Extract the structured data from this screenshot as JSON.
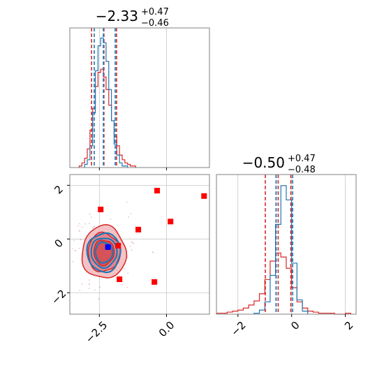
{
  "chart_data": {
    "type": "corner",
    "colors": {
      "series_a": "#1f77b4",
      "series_b": "#d62728",
      "markers": "#ff0000",
      "truth_marker": "#0000ff",
      "grid": "#c8c8c8",
      "frame": "#808080"
    },
    "parameters": [
      {
        "title": {
          "main": "−2.33",
          "sup": "+0.47",
          "sub": "−0.46"
        },
        "xlim": [
          -3.6,
          1.6
        ],
        "xticks": [
          -2.5,
          0.0
        ],
        "xtick_labels": [
          "−2.5",
          "0.0"
        ],
        "median_b": -2.33,
        "quantiles_b": [
          -2.79,
          -1.86
        ],
        "median_a": -2.35,
        "quantiles_a": [
          -2.69,
          -1.91
        ],
        "hist_b": {
          "x": [
            -3.2,
            -3.1,
            -3.0,
            -2.9,
            -2.8,
            -2.7,
            -2.6,
            -2.5,
            -2.4,
            -2.3,
            -2.2,
            -2.1,
            -2.0,
            -1.9,
            -1.8,
            -1.7,
            -1.6,
            -1.5,
            -1.4,
            -1.3,
            -1.2
          ],
          "y": [
            1,
            3,
            6,
            12,
            24,
            38,
            52,
            61,
            63,
            58,
            50,
            40,
            30,
            20,
            14,
            8,
            5,
            3,
            2,
            1,
            1
          ]
        },
        "hist_a": {
          "x": [
            -3.0,
            -2.9,
            -2.8,
            -2.7,
            -2.6,
            -2.5,
            -2.4,
            -2.3,
            -2.2,
            -2.1,
            -2.0,
            -1.9,
            -1.8,
            -1.7,
            -1.6,
            -1.5
          ],
          "y": [
            2,
            5,
            14,
            35,
            62,
            78,
            83,
            80,
            68,
            50,
            30,
            15,
            8,
            3,
            1,
            1
          ]
        }
      },
      {
        "title": {
          "main": "−0.50",
          "sup": "+0.47",
          "sub": "−0.48"
        },
        "xlim": [
          -2.8,
          2.4
        ],
        "xticks": [
          -2,
          0,
          2
        ],
        "xtick_labels": [
          "−2",
          "0",
          "2"
        ],
        "median_b": -0.5,
        "quantiles_b": [
          -0.98,
          -0.03
        ],
        "median_a": -0.58,
        "quantiles_a": [
          -0.58,
          0.04
        ],
        "hist_b": {
          "x": [
            -2.7,
            -2.5,
            -2.3,
            -2.1,
            -1.9,
            -1.7,
            -1.5,
            -1.3,
            -1.1,
            -0.9,
            -0.7,
            -0.5,
            -0.3,
            -0.1,
            0.1,
            0.3,
            0.5,
            0.7,
            0.9,
            1.1,
            1.3,
            1.5,
            1.7,
            1.9,
            2.1
          ],
          "y": [
            1,
            1,
            2,
            3,
            4,
            6,
            9,
            13,
            20,
            34,
            52,
            60,
            56,
            45,
            26,
            12,
            6,
            3,
            2,
            1,
            1,
            1,
            0,
            0,
            1
          ]
        },
        "hist_a": {
          "x": [
            -1.3,
            -1.1,
            -0.9,
            -0.7,
            -0.5,
            -0.3,
            -0.1,
            0.1,
            0.3,
            0.5
          ],
          "y": [
            1,
            4,
            12,
            38,
            88,
            126,
            112,
            50,
            14,
            3
          ]
        }
      }
    ],
    "joint": {
      "xlim": [
        -3.6,
        1.6
      ],
      "ylim": [
        -2.8,
        2.4
      ],
      "xticks": [
        -2.5,
        0.0
      ],
      "yticks": [
        -2,
        0,
        2
      ],
      "ytick_labels": [
        "−2",
        "0",
        "2"
      ],
      "center": [
        -2.33,
        -0.5
      ],
      "blue_contour_radii": [
        [
          0.32,
          0.38
        ],
        [
          0.48,
          0.55
        ],
        [
          0.62,
          0.72
        ]
      ],
      "red_contour_radii": [
        [
          0.38,
          0.47
        ],
        [
          0.6,
          0.72
        ],
        [
          0.82,
          0.98
        ]
      ],
      "marker_points": [
        [
          -2.45,
          1.1
        ],
        [
          -0.35,
          1.8
        ],
        [
          1.4,
          1.6
        ],
        [
          0.15,
          0.65
        ],
        [
          -1.05,
          0.35
        ],
        [
          -1.8,
          -0.25
        ],
        [
          -1.75,
          -1.5
        ],
        [
          -0.45,
          -1.6
        ]
      ],
      "truth_point": [
        -2.18,
        -0.3
      ]
    }
  }
}
